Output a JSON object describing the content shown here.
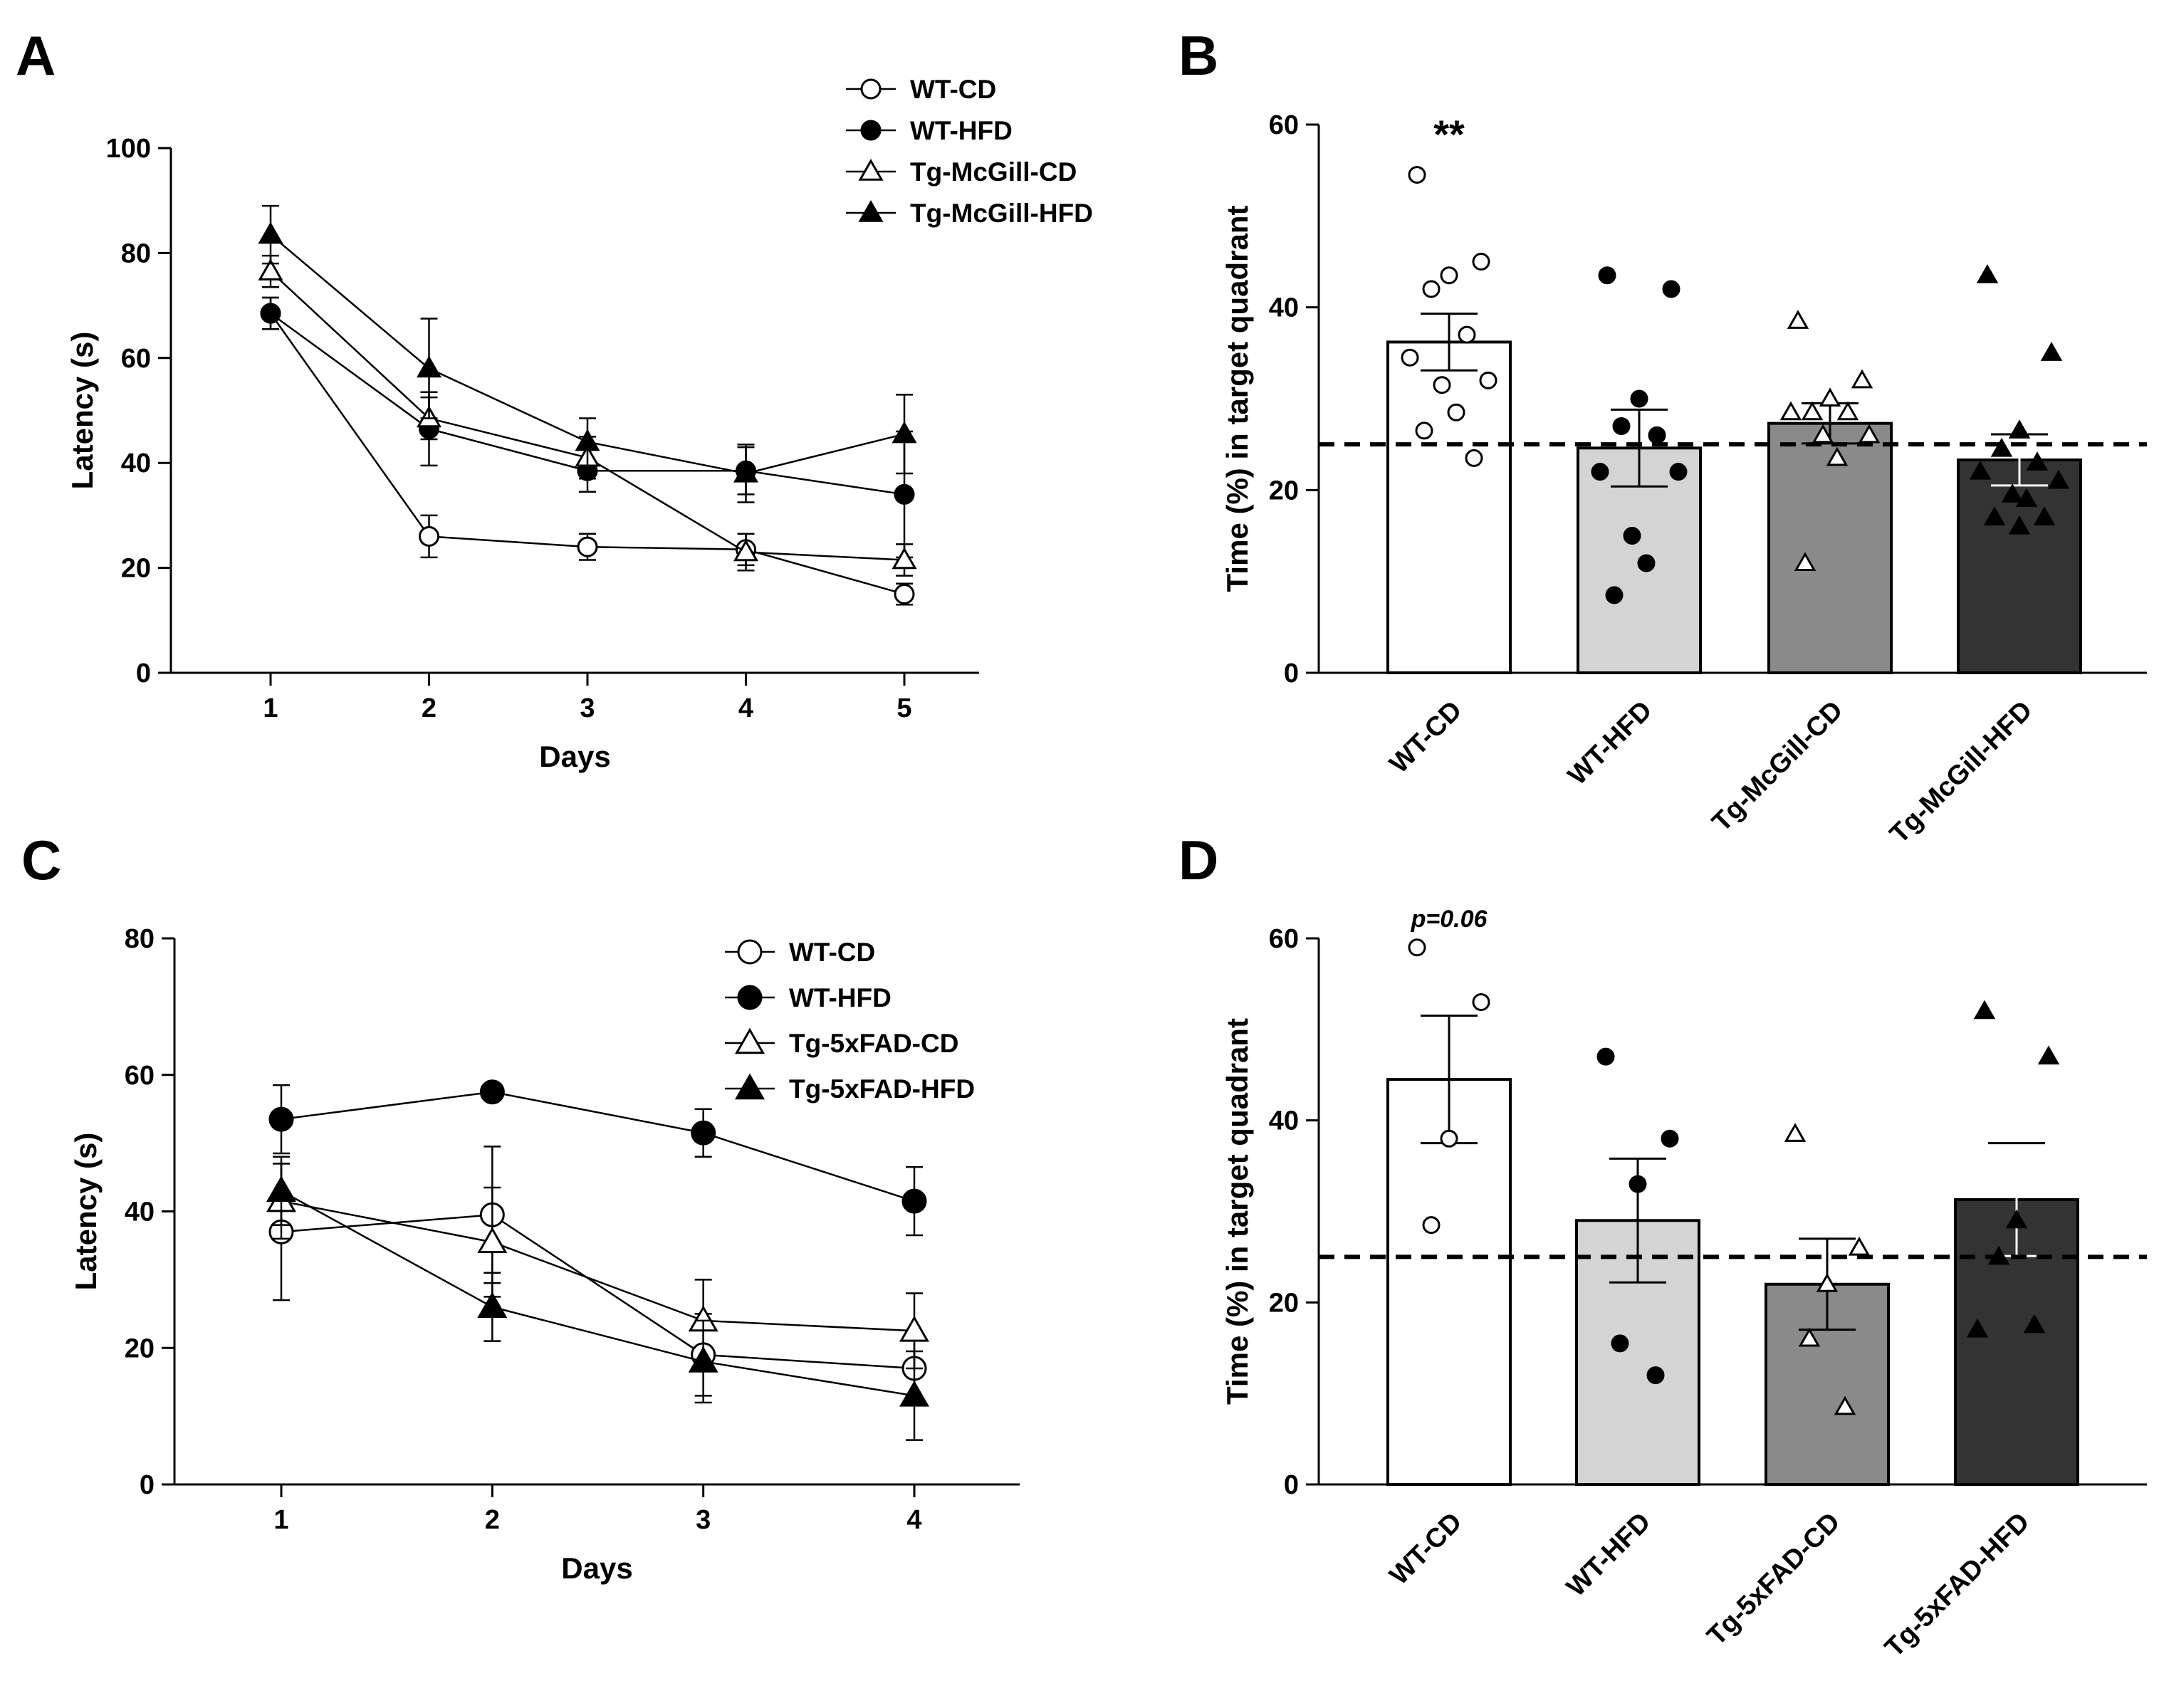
{
  "chart_data": [
    {
      "panel": "A",
      "type": "line",
      "xlabel": "Days",
      "ylabel": "Latency (s)",
      "categories": [
        "1",
        "2",
        "3",
        "4",
        "5"
      ],
      "ylim": [
        0,
        100
      ],
      "yticks": [
        "0",
        "20",
        "40",
        "60",
        "80",
        "100"
      ],
      "legend_position": "top-right",
      "series": [
        {
          "name": "WT-CD",
          "marker": "circle-open",
          "values": [
            68.5,
            26,
            24,
            23.5,
            15
          ],
          "errors": [
            3,
            4,
            2.5,
            3,
            2
          ]
        },
        {
          "name": "WT-HFD",
          "marker": "circle-filled",
          "values": [
            68.5,
            46.5,
            38.5,
            38.5,
            34
          ],
          "errors": [
            3,
            7,
            4,
            4.5,
            12
          ]
        },
        {
          "name": "Tg-McGill-CD",
          "marker": "triangle-open",
          "values": [
            76.5,
            48.5,
            41,
            23,
            21.5
          ],
          "errors": [
            3,
            4,
            4,
            3.5,
            3
          ]
        },
        {
          "name": "Tg-McGill-HFD",
          "marker": "triangle-filled",
          "values": [
            83.5,
            58,
            44,
            38,
            45.5
          ],
          "errors": [
            5.5,
            9.5,
            4.5,
            5.5,
            7.5
          ]
        }
      ]
    },
    {
      "panel": "B",
      "type": "bar",
      "ylabel": "Time (%) in target quadrant",
      "categories": [
        "WT-CD",
        "WT-HFD",
        "Tg-McGill-CD",
        "Tg-McGill-HFD"
      ],
      "ylim": [
        0,
        60
      ],
      "yticks": [
        "0",
        "20",
        "40",
        "60"
      ],
      "chance_level": 25,
      "annotation": {
        "category": "WT-CD",
        "text": "**"
      },
      "series": [
        {
          "name": "WT-CD",
          "mean": 36.2,
          "sem": 3.1,
          "fill": "#ffffff",
          "marker": "circle-open",
          "points": [
            54.5,
            45,
            43.5,
            42,
            37,
            34.5,
            32,
            31.5,
            28.5,
            26.5,
            23.5
          ]
        },
        {
          "name": "WT-HFD",
          "mean": 24.6,
          "sem": 4.2,
          "fill": "#d4d4d4",
          "marker": "circle-filled",
          "points": [
            43.5,
            42,
            30,
            27,
            26,
            22,
            22,
            15,
            12,
            8.5
          ]
        },
        {
          "name": "Tg-McGill-CD",
          "mean": 27.3,
          "sem": 2.2,
          "fill": "#8a8a8a",
          "marker": "triangle-open",
          "points": [
            38.5,
            32,
            30,
            28.5,
            28.5,
            28.5,
            26,
            26,
            23.5,
            12
          ]
        },
        {
          "name": "Tg-McGill-HFD",
          "mean": 23.3,
          "sem": 2.8,
          "fill": "#333333",
          "marker": "triangle-filled",
          "points": [
            43.5,
            35,
            26.5,
            24.5,
            23,
            22,
            21,
            19.5,
            19,
            17,
            17,
            16
          ]
        }
      ]
    },
    {
      "panel": "C",
      "type": "line",
      "xlabel": "Days",
      "ylabel": "Latency (s)",
      "categories": [
        "1",
        "2",
        "3",
        "4"
      ],
      "ylim": [
        0,
        80
      ],
      "yticks": [
        "0",
        "20",
        "40",
        "60",
        "80"
      ],
      "legend_position": "top-right",
      "series": [
        {
          "name": "WT-CD",
          "marker": "circle-open",
          "values": [
            37,
            39.5,
            19,
            17
          ],
          "errors": [
            10,
            10,
            6,
            5
          ]
        },
        {
          "name": "WT-HFD",
          "marker": "circle-filled",
          "values": [
            53.5,
            57.5,
            51.5,
            41.5
          ],
          "errors": [
            5,
            0,
            3.5,
            5
          ]
        },
        {
          "name": "Tg-5xFAD-CD",
          "marker": "triangle-open",
          "values": [
            41.5,
            35.5,
            24,
            22.5
          ],
          "errors": [
            5.5,
            8,
            6,
            5.5
          ]
        },
        {
          "name": "Tg-5xFAD-HFD",
          "marker": "triangle-filled",
          "values": [
            43,
            26,
            18,
            13
          ],
          "errors": [
            5,
            5,
            6,
            6.5
          ]
        }
      ]
    },
    {
      "panel": "D",
      "type": "bar",
      "ylabel": "Time (%) in target quadrant",
      "categories": [
        "WT-CD",
        "WT-HFD",
        "Tg-5xFAD-CD",
        "Tg-5xFAD-HFD"
      ],
      "ylim": [
        0,
        60
      ],
      "yticks": [
        "0",
        "20",
        "40",
        "60"
      ],
      "chance_level": 25,
      "annotation": {
        "category": "WT-CD",
        "text": "p=0.06"
      },
      "series": [
        {
          "name": "WT-CD",
          "mean": 44.5,
          "sem": 7,
          "fill": "#ffffff",
          "marker": "circle-open",
          "points": [
            59,
            53,
            38,
            28.5
          ]
        },
        {
          "name": "WT-HFD",
          "mean": 29,
          "sem": 6.8,
          "fill": "#d4d4d4",
          "marker": "circle-filled",
          "points": [
            47,
            38,
            33,
            15.5,
            12
          ]
        },
        {
          "name": "Tg-5xFAD-CD",
          "mean": 22,
          "sem": 5,
          "fill": "#8a8a8a",
          "marker": "triangle-open",
          "points": [
            38.5,
            26,
            22,
            16,
            8.5
          ]
        },
        {
          "name": "Tg-5xFAD-HFD",
          "mean": 31.3,
          "sem": 6.2,
          "fill": "#333333",
          "marker": "triangle-filled",
          "points": [
            52,
            47,
            29,
            25,
            17.5,
            17
          ]
        }
      ]
    }
  ]
}
